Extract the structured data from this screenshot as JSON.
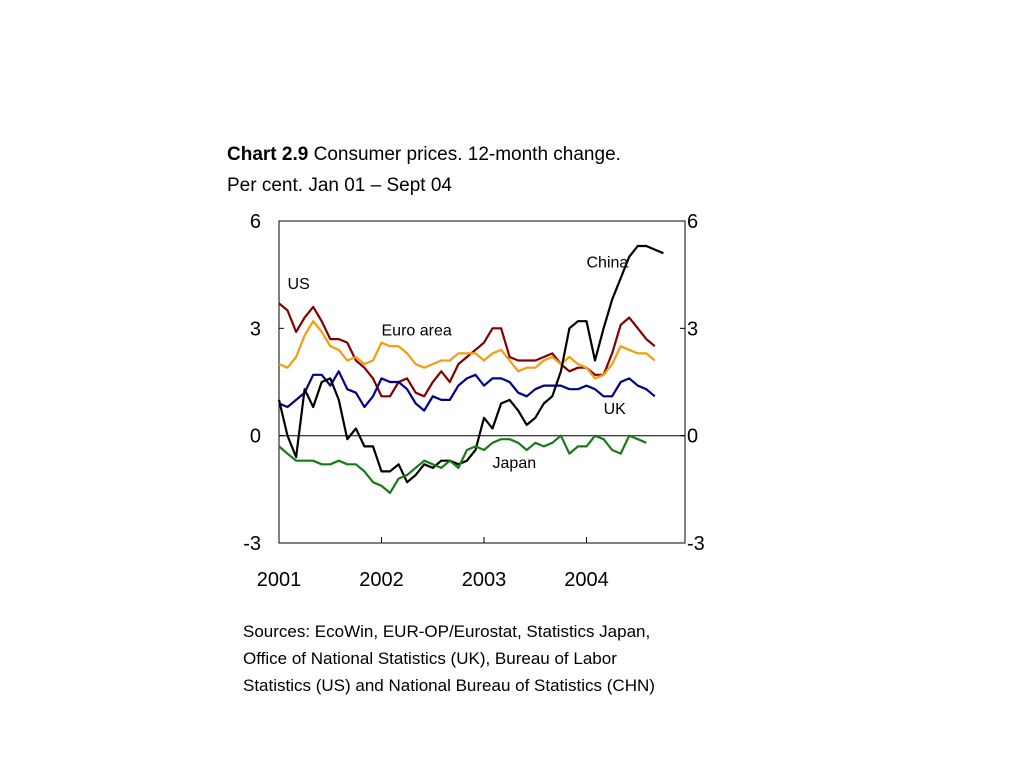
{
  "title": {
    "number": "Chart 2.9",
    "text": "Consumer prices. 12-month change.",
    "subtitle": "Per cent. Jan 01 – Sept 04"
  },
  "sources": [
    "Sources: EcoWin, EUR-OP/Eurostat, Statistics Japan,",
    "Office of National Statistics (UK), Bureau of Labor",
    "Statistics (US) and National Bureau of Statistics (CHN)"
  ],
  "chart_data": {
    "type": "line",
    "x_start": "2001-01",
    "x_end": "2004-12",
    "x_ticks": [
      "2001",
      "2002",
      "2003",
      "2004"
    ],
    "y_ticks": [
      "6",
      "3",
      "0",
      "-3"
    ],
    "ylim": [
      -3,
      6
    ],
    "grid": false,
    "zero_line": true,
    "series": [
      {
        "name": "US",
        "color": "#800000",
        "x": [
          "2001-01",
          "2001-02",
          "2001-03",
          "2001-04",
          "2001-05",
          "2001-06",
          "2001-07",
          "2001-08",
          "2001-09",
          "2001-10",
          "2001-11",
          "2001-12",
          "2002-01",
          "2002-02",
          "2002-03",
          "2002-04",
          "2002-05",
          "2002-06",
          "2002-07",
          "2002-08",
          "2002-09",
          "2002-10",
          "2002-11",
          "2002-12",
          "2003-01",
          "2003-02",
          "2003-03",
          "2003-04",
          "2003-05",
          "2003-06",
          "2003-07",
          "2003-08",
          "2003-09",
          "2003-10",
          "2003-11",
          "2003-12",
          "2004-01",
          "2004-02",
          "2004-03",
          "2004-04",
          "2004-05",
          "2004-06",
          "2004-07",
          "2004-08",
          "2004-09"
        ],
        "values": [
          3.7,
          3.5,
          2.9,
          3.3,
          3.6,
          3.2,
          2.7,
          2.7,
          2.6,
          2.1,
          1.9,
          1.6,
          1.1,
          1.1,
          1.5,
          1.6,
          1.2,
          1.1,
          1.5,
          1.8,
          1.5,
          2.0,
          2.2,
          2.4,
          2.6,
          3.0,
          3.0,
          2.2,
          2.1,
          2.1,
          2.1,
          2.2,
          2.3,
          2.0,
          1.8,
          1.9,
          1.9,
          1.7,
          1.7,
          2.3,
          3.1,
          3.3,
          3.0,
          2.7,
          2.5
        ],
        "label": {
          "text": "US",
          "x": "2001-02",
          "y": 4.1
        }
      },
      {
        "name": "Euro area",
        "color": "#f39c12",
        "x": [
          "2001-01",
          "2001-02",
          "2001-03",
          "2001-04",
          "2001-05",
          "2001-06",
          "2001-07",
          "2001-08",
          "2001-09",
          "2001-10",
          "2001-11",
          "2001-12",
          "2002-01",
          "2002-02",
          "2002-03",
          "2002-04",
          "2002-05",
          "2002-06",
          "2002-07",
          "2002-08",
          "2002-09",
          "2002-10",
          "2002-11",
          "2002-12",
          "2003-01",
          "2003-02",
          "2003-03",
          "2003-04",
          "2003-05",
          "2003-06",
          "2003-07",
          "2003-08",
          "2003-09",
          "2003-10",
          "2003-11",
          "2003-12",
          "2004-01",
          "2004-02",
          "2004-03",
          "2004-04",
          "2004-05",
          "2004-06",
          "2004-07",
          "2004-08",
          "2004-09"
        ],
        "values": [
          2.0,
          1.9,
          2.2,
          2.8,
          3.2,
          2.9,
          2.5,
          2.4,
          2.1,
          2.2,
          2.0,
          2.1,
          2.6,
          2.5,
          2.5,
          2.3,
          2.0,
          1.9,
          2.0,
          2.1,
          2.1,
          2.3,
          2.3,
          2.3,
          2.1,
          2.3,
          2.4,
          2.1,
          1.8,
          1.9,
          1.9,
          2.1,
          2.2,
          2.0,
          2.2,
          2.0,
          1.9,
          1.6,
          1.7,
          2.0,
          2.5,
          2.4,
          2.3,
          2.3,
          2.1
        ],
        "label": {
          "text": "Euro area",
          "x": "2002-01",
          "y": 2.8
        }
      },
      {
        "name": "UK",
        "color": "#00008b",
        "x": [
          "2001-01",
          "2001-02",
          "2001-03",
          "2001-04",
          "2001-05",
          "2001-06",
          "2001-07",
          "2001-08",
          "2001-09",
          "2001-10",
          "2001-11",
          "2001-12",
          "2002-01",
          "2002-02",
          "2002-03",
          "2002-04",
          "2002-05",
          "2002-06",
          "2002-07",
          "2002-08",
          "2002-09",
          "2002-10",
          "2002-11",
          "2002-12",
          "2003-01",
          "2003-02",
          "2003-03",
          "2003-04",
          "2003-05",
          "2003-06",
          "2003-07",
          "2003-08",
          "2003-09",
          "2003-10",
          "2003-11",
          "2003-12",
          "2004-01",
          "2004-02",
          "2004-03",
          "2004-04",
          "2004-05",
          "2004-06",
          "2004-07",
          "2004-08",
          "2004-09"
        ],
        "values": [
          0.9,
          0.8,
          1.0,
          1.2,
          1.7,
          1.7,
          1.4,
          1.8,
          1.3,
          1.2,
          0.8,
          1.1,
          1.6,
          1.5,
          1.5,
          1.3,
          0.9,
          0.7,
          1.1,
          1.0,
          1.0,
          1.4,
          1.6,
          1.7,
          1.4,
          1.6,
          1.6,
          1.5,
          1.2,
          1.1,
          1.3,
          1.4,
          1.4,
          1.4,
          1.3,
          1.3,
          1.4,
          1.3,
          1.1,
          1.1,
          1.5,
          1.6,
          1.4,
          1.3,
          1.1
        ],
        "label": {
          "text": "UK",
          "x": "2004-03",
          "y": 0.6
        }
      },
      {
        "name": "China",
        "color": "#000000",
        "x": [
          "2001-01",
          "2001-02",
          "2001-03",
          "2001-04",
          "2001-05",
          "2001-06",
          "2001-07",
          "2001-08",
          "2001-09",
          "2001-10",
          "2001-11",
          "2001-12",
          "2002-01",
          "2002-02",
          "2002-03",
          "2002-04",
          "2002-05",
          "2002-06",
          "2002-07",
          "2002-08",
          "2002-09",
          "2002-10",
          "2002-11",
          "2002-12",
          "2003-01",
          "2003-02",
          "2003-03",
          "2003-04",
          "2003-05",
          "2003-06",
          "2003-07",
          "2003-08",
          "2003-09",
          "2003-10",
          "2003-11",
          "2003-12",
          "2004-01",
          "2004-02",
          "2004-03",
          "2004-04",
          "2004-05",
          "2004-06",
          "2004-07",
          "2004-08",
          "2004-09",
          "2004-10"
        ],
        "values": [
          1.0,
          0.0,
          -0.6,
          1.3,
          0.8,
          1.5,
          1.6,
          1.0,
          -0.1,
          0.2,
          -0.3,
          -0.3,
          -1.0,
          -1.0,
          -0.8,
          -1.3,
          -1.1,
          -0.8,
          -0.9,
          -0.7,
          -0.7,
          -0.8,
          -0.7,
          -0.4,
          0.5,
          0.2,
          0.9,
          1.0,
          0.7,
          0.3,
          0.5,
          0.9,
          1.1,
          1.8,
          3.0,
          3.2,
          3.2,
          2.1,
          3.0,
          3.8,
          4.4,
          5.0,
          5.3,
          5.3,
          5.2,
          5.1
        ],
        "label": {
          "text": "China",
          "x": "2004-01",
          "y": 4.7
        }
      },
      {
        "name": "Japan",
        "color": "#1a7a1a",
        "x": [
          "2001-01",
          "2001-02",
          "2001-03",
          "2001-04",
          "2001-05",
          "2001-06",
          "2001-07",
          "2001-08",
          "2001-09",
          "2001-10",
          "2001-11",
          "2001-12",
          "2002-01",
          "2002-02",
          "2002-03",
          "2002-04",
          "2002-05",
          "2002-06",
          "2002-07",
          "2002-08",
          "2002-09",
          "2002-10",
          "2002-11",
          "2002-12",
          "2003-01",
          "2003-02",
          "2003-03",
          "2003-04",
          "2003-05",
          "2003-06",
          "2003-07",
          "2003-08",
          "2003-09",
          "2003-10",
          "2003-11",
          "2003-12",
          "2004-01",
          "2004-02",
          "2004-03",
          "2004-04",
          "2004-05",
          "2004-06",
          "2004-07",
          "2004-08"
        ],
        "values": [
          -0.3,
          -0.5,
          -0.7,
          -0.7,
          -0.7,
          -0.8,
          -0.8,
          -0.7,
          -0.8,
          -0.8,
          -1.0,
          -1.3,
          -1.4,
          -1.6,
          -1.2,
          -1.1,
          -0.9,
          -0.7,
          -0.8,
          -0.9,
          -0.7,
          -0.9,
          -0.4,
          -0.3,
          -0.4,
          -0.2,
          -0.1,
          -0.1,
          -0.2,
          -0.4,
          -0.2,
          -0.3,
          -0.2,
          0.0,
          -0.5,
          -0.3,
          -0.3,
          0.0,
          -0.1,
          -0.4,
          -0.5,
          0.0,
          -0.1,
          -0.2
        ],
        "label": {
          "text": "Japan",
          "x": "2003-02",
          "y": -0.9
        }
      }
    ]
  }
}
